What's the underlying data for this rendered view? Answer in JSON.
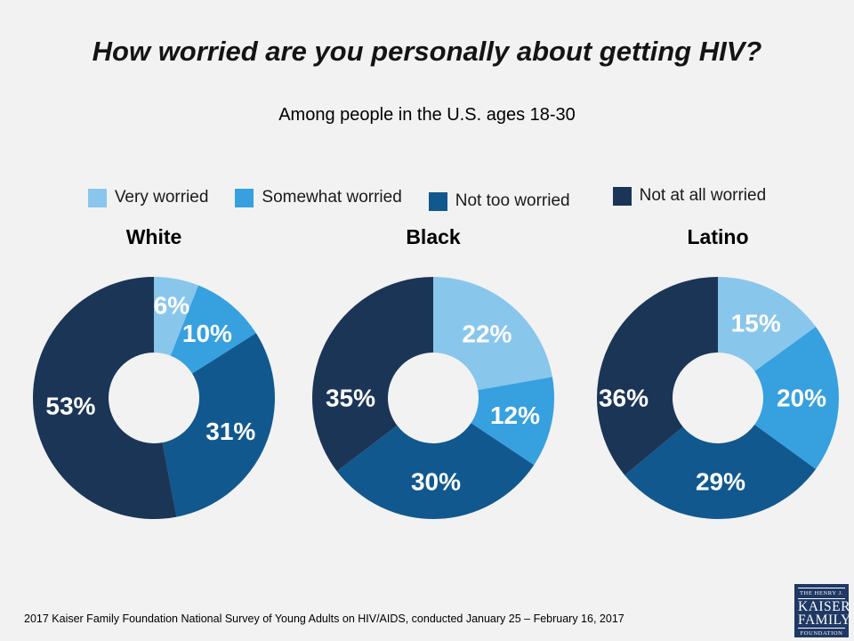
{
  "slide": {
    "title": "How worried are you personally about getting HIV?",
    "subtitle": "Among people in the U.S. ages 18-30",
    "source_note": "2017 Kaiser Family Foundation National Survey of Young Adults on HIV/AIDS, conducted January 25 – February 16, 2017",
    "background_color": "#F2F2F3"
  },
  "legend": {
    "position": "top",
    "items": [
      {
        "label": "Very worried",
        "color": "#89C6EC"
      },
      {
        "label": "Somewhat worried",
        "color": "#37A0DF"
      },
      {
        "label": "Not too worried",
        "color": "#11588E"
      },
      {
        "label": "Not at all worried",
        "color": "#1B3557"
      }
    ]
  },
  "chart_data": [
    {
      "type": "pie",
      "subtype": "donut",
      "title": "White",
      "categories": [
        "Very worried",
        "Somewhat worried",
        "Not too worried",
        "Not at all worried"
      ],
      "values": [
        6,
        10,
        31,
        53
      ],
      "data_labels": [
        "6%",
        "10%",
        "31%",
        "53%"
      ],
      "colors": [
        "#89C6EC",
        "#37A0DF",
        "#11588E",
        "#1B3557"
      ],
      "start_angle_deg": 0,
      "direction": "clockwise",
      "label_color": "#FFFFFF"
    },
    {
      "type": "pie",
      "subtype": "donut",
      "title": "Black",
      "categories": [
        "Very worried",
        "Somewhat worried",
        "Not too worried",
        "Not at all worried"
      ],
      "values": [
        22,
        12,
        30,
        35
      ],
      "data_labels": [
        "22%",
        "12%",
        "30%",
        "35%"
      ],
      "colors": [
        "#89C6EC",
        "#37A0DF",
        "#11588E",
        "#1B3557"
      ],
      "start_angle_deg": 0,
      "direction": "clockwise",
      "label_color": "#FFFFFF"
    },
    {
      "type": "pie",
      "subtype": "donut",
      "title": "Latino",
      "categories": [
        "Very worried",
        "Somewhat worried",
        "Not too worried",
        "Not at all worried"
      ],
      "values": [
        15,
        20,
        29,
        36
      ],
      "data_labels": [
        "15%",
        "20%",
        "29%",
        "36%"
      ],
      "colors": [
        "#89C6EC",
        "#37A0DF",
        "#11588E",
        "#1B3557"
      ],
      "start_angle_deg": 0,
      "direction": "clockwise",
      "label_color": "#FFFFFF"
    }
  ],
  "logo": {
    "lines": [
      "THE HENRY J.",
      "KAISER",
      "FAMILY",
      "FOUNDATION"
    ],
    "background_color": "#1F3864"
  }
}
